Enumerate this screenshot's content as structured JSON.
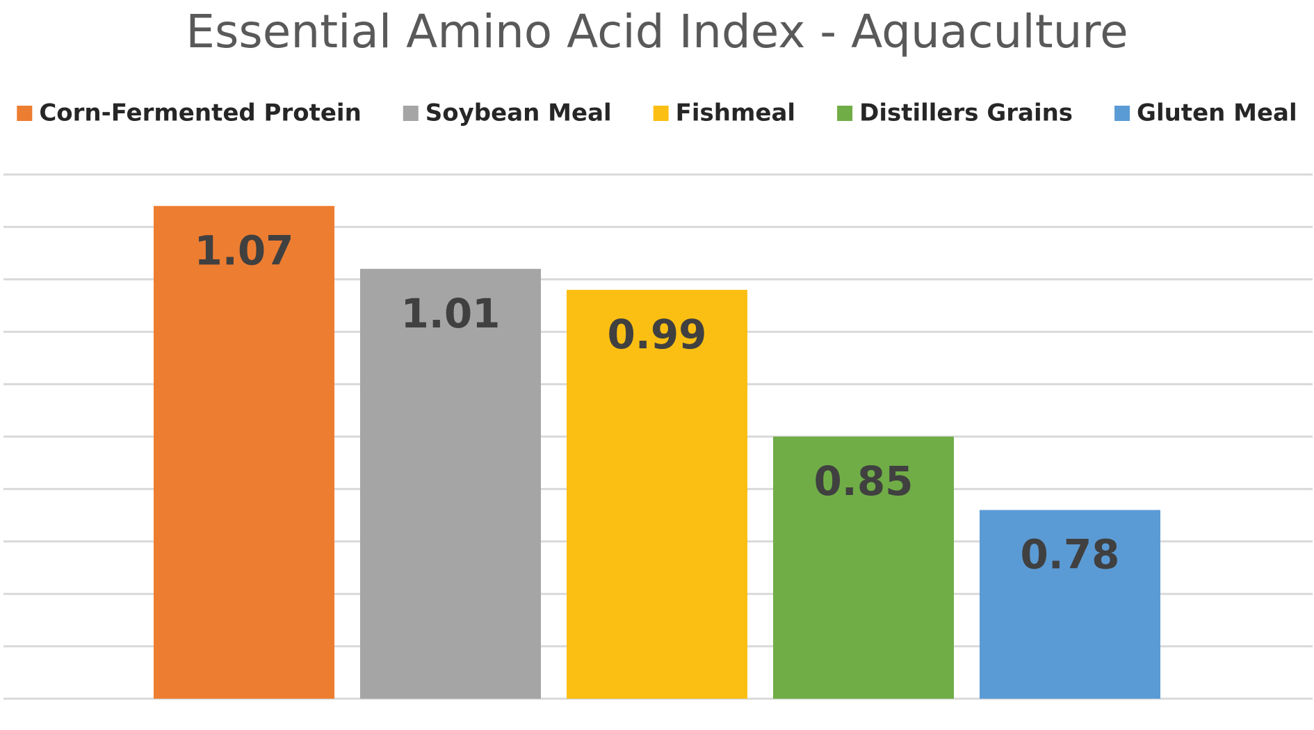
{
  "chart_data": {
    "type": "bar",
    "title": "Essential Amino Acid Index - Aquaculture",
    "series": [
      {
        "name": "Corn-Fermented Protein",
        "color": "#ed7d31",
        "values": [
          1.07
        ]
      },
      {
        "name": "Soybean Meal",
        "color": "#a5a5a5",
        "values": [
          1.01
        ]
      },
      {
        "name": "Fishmeal",
        "color": "#fbbf13",
        "values": [
          0.99
        ]
      },
      {
        "name": "Distillers Grains",
        "color": "#70ad47",
        "values": [
          0.85
        ]
      },
      {
        "name": "Gluten Meal",
        "color": "#5b9bd5",
        "values": [
          0.78
        ]
      }
    ],
    "ylim": [
      0.6,
      1.1
    ],
    "yticks": [
      0.6,
      0.65,
      0.7,
      0.75,
      0.8,
      0.85,
      0.9,
      0.95,
      1.0,
      1.05,
      1.1
    ],
    "grid": true,
    "legend": "top"
  }
}
